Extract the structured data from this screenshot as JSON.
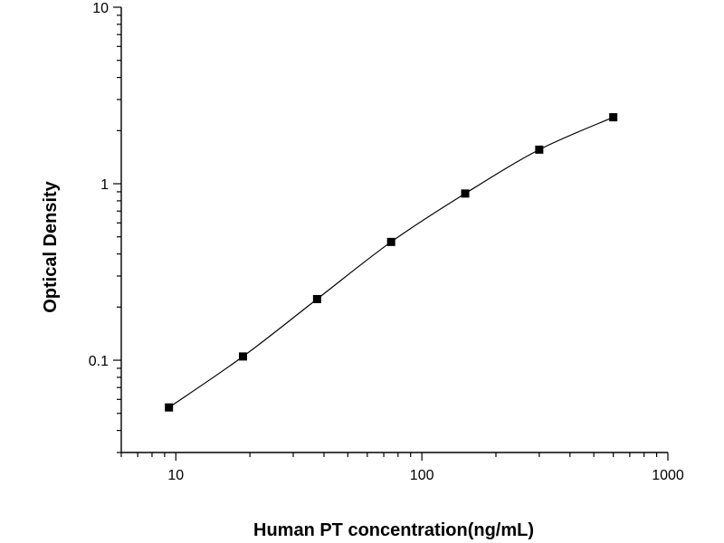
{
  "chart_data": {
    "type": "scatter",
    "xlabel": "Human PT concentration(ng/mL)",
    "ylabel": "Optical Density",
    "xscale": "log",
    "yscale": "log",
    "xlim": [
      6,
      1000
    ],
    "ylim": [
      0.03,
      10
    ],
    "x_ticks": [
      {
        "value": 10,
        "label": "10"
      },
      {
        "value": 100,
        "label": "100"
      },
      {
        "value": 1000,
        "label": "1000"
      }
    ],
    "y_ticks": [
      {
        "value": 0.1,
        "label": "0.1"
      },
      {
        "value": 1,
        "label": "1"
      },
      {
        "value": 10,
        "label": "10"
      }
    ],
    "grid": false,
    "legend": "none",
    "marker": "square",
    "series": [
      {
        "x": [
          9.375,
          18.75,
          37.5,
          75,
          150,
          300,
          600
        ],
        "y": [
          0.054,
          0.105,
          0.222,
          0.468,
          0.88,
          1.56,
          2.38
        ]
      }
    ],
    "fit_curve": true,
    "colors": {
      "points": "#000000",
      "line": "#000000",
      "axes": "#000000"
    }
  }
}
